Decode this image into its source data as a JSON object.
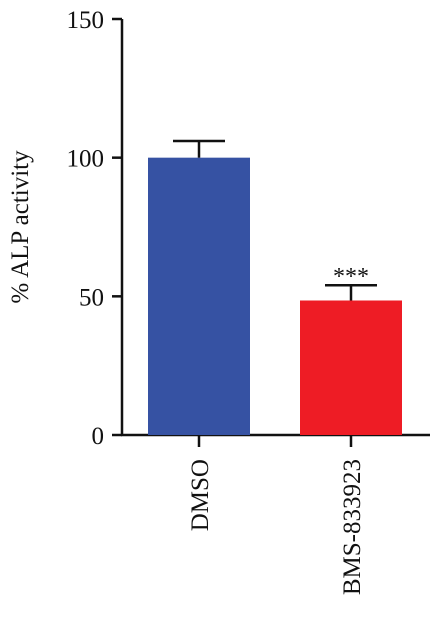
{
  "chart_data": {
    "type": "bar",
    "title": "",
    "xlabel": "",
    "ylabel": "% ALP activity",
    "ylim": [
      0,
      150
    ],
    "yticks": [
      0,
      50,
      100,
      150
    ],
    "grid": false,
    "categories": [
      "DMSO",
      "BMS-833923"
    ],
    "values": [
      100,
      48.5
    ],
    "errors": [
      6,
      5.5
    ],
    "colors": [
      "#3652a3",
      "#ee1c25"
    ],
    "annotations": [
      {
        "category": "BMS-833923",
        "text": "***"
      }
    ]
  }
}
